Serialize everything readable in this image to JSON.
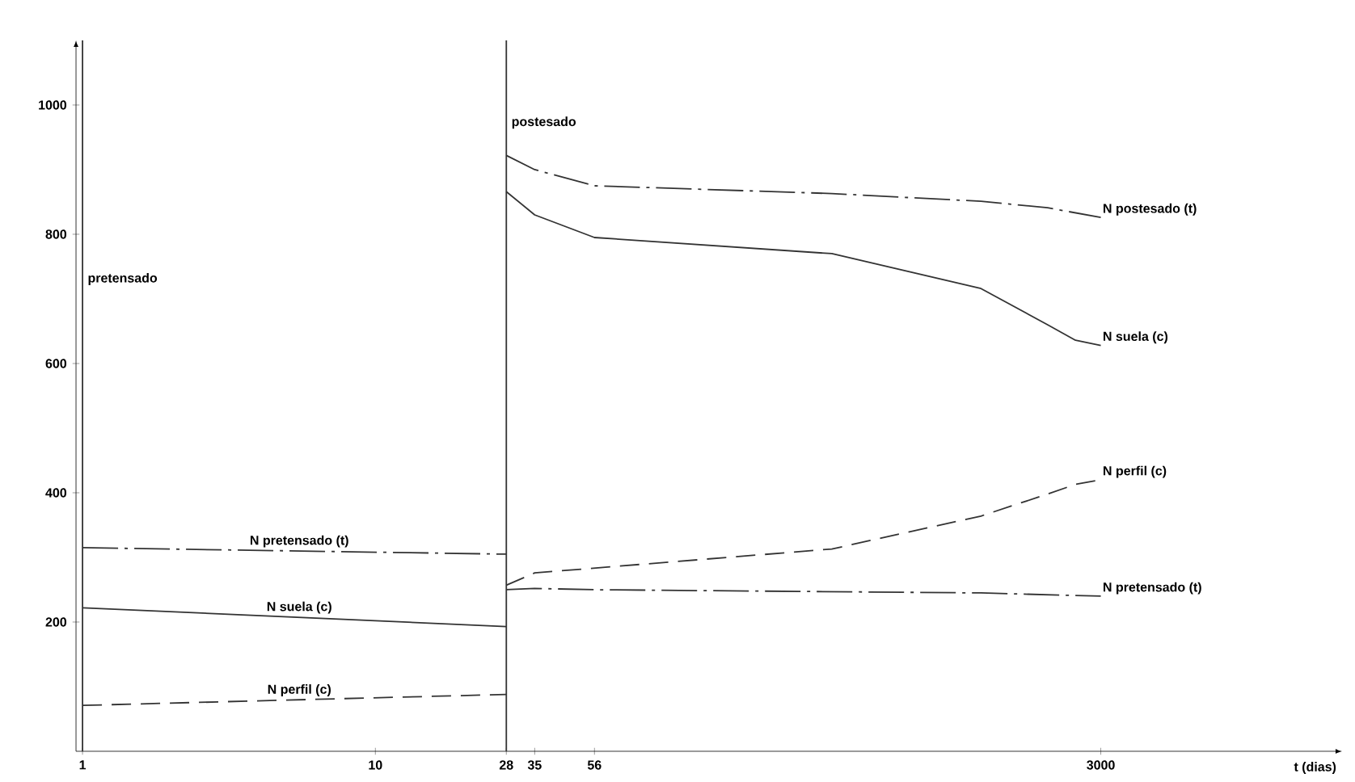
{
  "chart_data": {
    "type": "line",
    "xlabel": "t (dias)",
    "log": "x",
    "xlim": [
      0.95,
      20000
    ],
    "ylim": [
      0,
      1100
    ],
    "xticks": [
      1,
      10,
      28,
      35,
      56,
      3000
    ],
    "yticks": [
      200,
      400,
      600,
      800,
      1000
    ],
    "grid": false,
    "legend": false,
    "marker": "none",
    "ref_lines": [
      {
        "axis": "x",
        "value": 1,
        "label": "pretensado",
        "color": "#333333"
      },
      {
        "axis": "x",
        "value": 28,
        "label": "postesado",
        "color": "#333333"
      }
    ],
    "series": [
      {
        "name": "N pretensado (t)",
        "color": "#333333",
        "line_style": "dashdot",
        "x": [
          1,
          28
        ],
        "values": [
          315,
          305
        ]
      },
      {
        "name": "N suela (c)",
        "color": "#333333",
        "line_style": "solid",
        "x": [
          1,
          28
        ],
        "values": [
          222,
          193
        ]
      },
      {
        "name": "N perfil (c)",
        "color": "#333333",
        "line_style": "dashed",
        "x": [
          1,
          28
        ],
        "values": [
          71,
          88
        ]
      },
      {
        "name": "N postesado (t)",
        "color": "#333333",
        "line_style": "dashdot",
        "x": [
          28,
          35,
          56,
          362,
          1170,
          1975,
          3000
        ],
        "values": [
          922,
          900,
          875,
          863,
          851,
          841,
          826
        ]
      },
      {
        "name": "N suela (c)",
        "color": "#333333",
        "line_style": "solid",
        "x": [
          28,
          35,
          56,
          362,
          1170,
          1975,
          2460,
          3000
        ],
        "values": [
          866,
          830,
          795,
          770,
          716,
          660,
          636,
          628
        ]
      },
      {
        "name": "N perfil (c)",
        "color": "#333333",
        "line_style": "dashed",
        "x": [
          28,
          35,
          362,
          1170,
          1975,
          2460,
          3000
        ],
        "values": [
          257,
          276,
          313,
          364,
          398,
          413,
          420
        ]
      },
      {
        "name": "N pretensado (t)",
        "color": "#333333",
        "line_style": "dashdot",
        "x": [
          28,
          35,
          56,
          1170,
          3000
        ],
        "values": [
          250,
          252,
          250,
          245,
          240
        ]
      }
    ]
  }
}
